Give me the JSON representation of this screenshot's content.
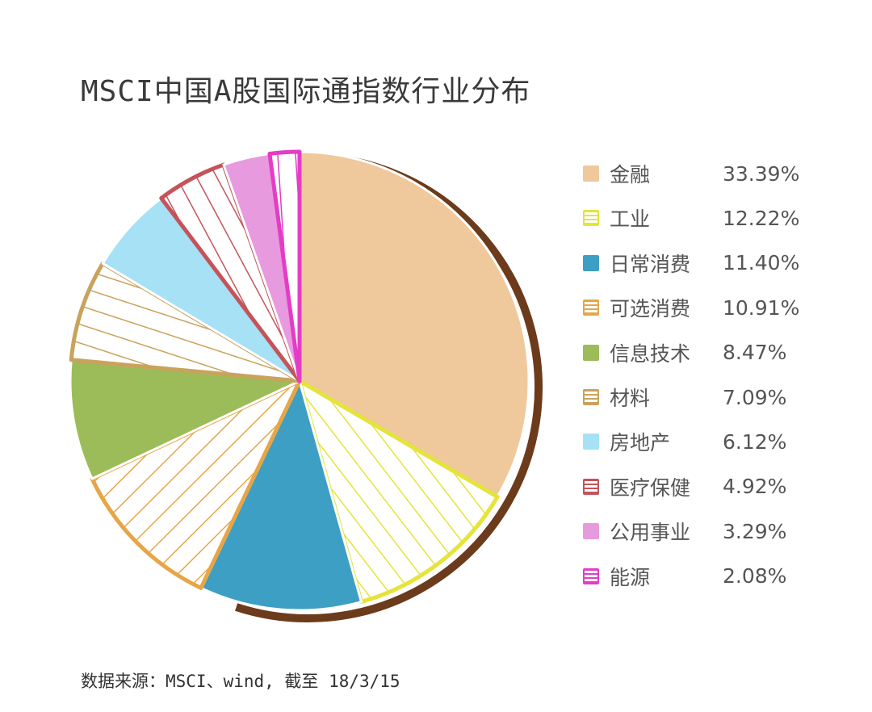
{
  "title": "MSCI中国A股国际通指数行业分布",
  "source": "数据来源：MSCI、wind, 截至 18/3/15",
  "chart_data": {
    "type": "pie",
    "title": "MSCI中国A股国际通指数行业分布",
    "start": "top",
    "direction": "clockwise",
    "legend_position": "right",
    "categories": [
      "金融",
      "工业",
      "日常消费",
      "可选消费",
      "信息技术",
      "材料",
      "房地产",
      "医疗保健",
      "公用事业",
      "能源"
    ],
    "values": [
      33.39,
      12.22,
      11.4,
      10.91,
      8.47,
      7.09,
      6.12,
      4.92,
      3.29,
      2.08
    ],
    "labels": [
      "33.39%",
      "12.22%",
      "11.40%",
      "10.91%",
      "8.47%",
      "7.09%",
      "6.12%",
      "4.92%",
      "3.29%",
      "2.08%"
    ],
    "colors": [
      "#efc99b",
      "#e4e43a",
      "#3d9fc3",
      "#e6a648",
      "#9cbc59",
      "#c9a25c",
      "#a7e1f6",
      "#c4545a",
      "#e89ade",
      "#e43cc6"
    ],
    "hatched": [
      false,
      true,
      false,
      true,
      false,
      true,
      false,
      true,
      false,
      true
    ]
  }
}
